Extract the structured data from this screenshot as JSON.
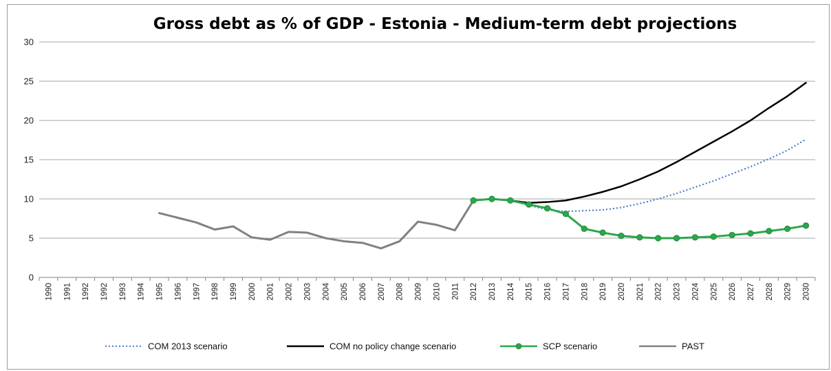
{
  "chart_data": {
    "type": "line",
    "title": "Gross debt as % of GDP - Estonia - Medium-term debt projections",
    "xlabel": "",
    "ylabel": "",
    "ylim": [
      0,
      30
    ],
    "yticks": [
      0,
      5,
      10,
      15,
      20,
      25,
      30
    ],
    "x": [
      "1990",
      "1991",
      "1992",
      "1992",
      "1993",
      "1994",
      "1995",
      "1996",
      "1997",
      "1998",
      "1999",
      "2000",
      "2001",
      "2002",
      "2003",
      "2004",
      "2005",
      "2006",
      "2007",
      "2008",
      "2009",
      "2010",
      "2011",
      "2012",
      "2013",
      "2014",
      "2015",
      "2016",
      "2017",
      "2018",
      "2019",
      "2020",
      "2021",
      "2022",
      "2023",
      "2024",
      "2025",
      "2026",
      "2027",
      "2028",
      "2029",
      "2030"
    ],
    "grid": "horizontal",
    "legend_position": "bottom",
    "series": [
      {
        "name": "COM 2013 scenario",
        "color": "#4a7cc7",
        "style": "dotted",
        "values": [
          null,
          null,
          null,
          null,
          null,
          null,
          null,
          null,
          null,
          null,
          null,
          null,
          null,
          null,
          null,
          null,
          null,
          null,
          null,
          null,
          null,
          null,
          null,
          9.8,
          10.0,
          9.8,
          9.2,
          8.6,
          8.4,
          8.5,
          8.6,
          8.9,
          9.4,
          10.0,
          10.7,
          11.5,
          12.3,
          13.2,
          14.1,
          15.1,
          16.2,
          17.6
        ]
      },
      {
        "name": "COM no policy change scenario",
        "color": "#000000",
        "style": "solid",
        "values": [
          null,
          null,
          null,
          null,
          null,
          null,
          null,
          null,
          null,
          null,
          null,
          null,
          null,
          null,
          null,
          null,
          null,
          null,
          null,
          null,
          null,
          null,
          null,
          9.8,
          10.0,
          9.8,
          9.5,
          9.6,
          9.8,
          10.3,
          10.9,
          11.6,
          12.5,
          13.5,
          14.7,
          16.0,
          17.3,
          18.6,
          20.0,
          21.6,
          23.1,
          24.8
        ]
      },
      {
        "name": "SCP scenario",
        "color": "#2aa84a",
        "style": "solid-markers",
        "values": [
          null,
          null,
          null,
          null,
          null,
          null,
          null,
          null,
          null,
          null,
          null,
          null,
          null,
          null,
          null,
          null,
          null,
          null,
          null,
          null,
          null,
          null,
          null,
          9.8,
          10.0,
          9.8,
          9.3,
          8.8,
          8.1,
          6.2,
          5.7,
          5.3,
          5.1,
          5.0,
          5.0,
          5.1,
          5.2,
          5.4,
          5.6,
          5.9,
          6.2,
          6.6
        ]
      },
      {
        "name": "PAST",
        "color": "#808080",
        "style": "solid",
        "values": [
          null,
          null,
          null,
          null,
          null,
          null,
          8.2,
          7.6,
          7.0,
          6.1,
          6.5,
          5.1,
          4.8,
          5.8,
          5.7,
          5.0,
          4.6,
          4.4,
          3.7,
          4.6,
          7.1,
          6.7,
          6.0,
          9.8,
          null,
          null,
          null,
          null,
          null,
          null,
          null,
          null,
          null,
          null,
          null,
          null,
          null,
          null,
          null,
          null,
          null,
          null
        ]
      }
    ]
  }
}
